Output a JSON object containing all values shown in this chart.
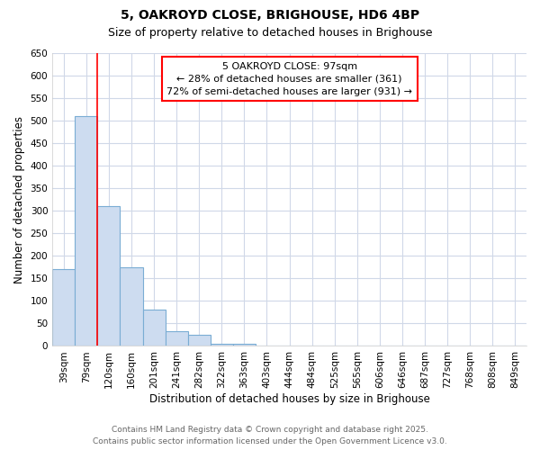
{
  "title": "5, OAKROYD CLOSE, BRIGHOUSE, HD6 4BP",
  "subtitle": "Size of property relative to detached houses in Brighouse",
  "xlabel": "Distribution of detached houses by size in Brighouse",
  "ylabel": "Number of detached properties",
  "bar_values": [
    170,
    510,
    310,
    175,
    80,
    33,
    25,
    5,
    5,
    1,
    1,
    0,
    0,
    0,
    0,
    0,
    0,
    0,
    0,
    1,
    0
  ],
  "categories": [
    "39sqm",
    "79sqm",
    "120sqm",
    "160sqm",
    "201sqm",
    "241sqm",
    "282sqm",
    "322sqm",
    "363sqm",
    "403sqm",
    "444sqm",
    "484sqm",
    "525sqm",
    "565sqm",
    "606sqm",
    "646sqm",
    "687sqm",
    "727sqm",
    "768sqm",
    "808sqm",
    "849sqm"
  ],
  "bar_color": "#cddcf0",
  "bar_edge_color": "#7aadd4",
  "ylim": [
    0,
    650
  ],
  "yticks": [
    0,
    50,
    100,
    150,
    200,
    250,
    300,
    350,
    400,
    450,
    500,
    550,
    600,
    650
  ],
  "red_line_x": 1.5,
  "annotation_text_line1": "5 OAKROYD CLOSE: 97sqm",
  "annotation_text_line2": "← 28% of detached houses are smaller (361)",
  "annotation_text_line3": "72% of semi-detached houses are larger (931) →",
  "footer_line1": "Contains HM Land Registry data © Crown copyright and database right 2025.",
  "footer_line2": "Contains public sector information licensed under the Open Government Licence v3.0.",
  "background_color": "#ffffff",
  "grid_color": "#d0d8e8",
  "title_fontsize": 10,
  "subtitle_fontsize": 9,
  "axis_label_fontsize": 8.5,
  "tick_fontsize": 7.5,
  "annotation_fontsize": 8,
  "footer_fontsize": 6.5
}
